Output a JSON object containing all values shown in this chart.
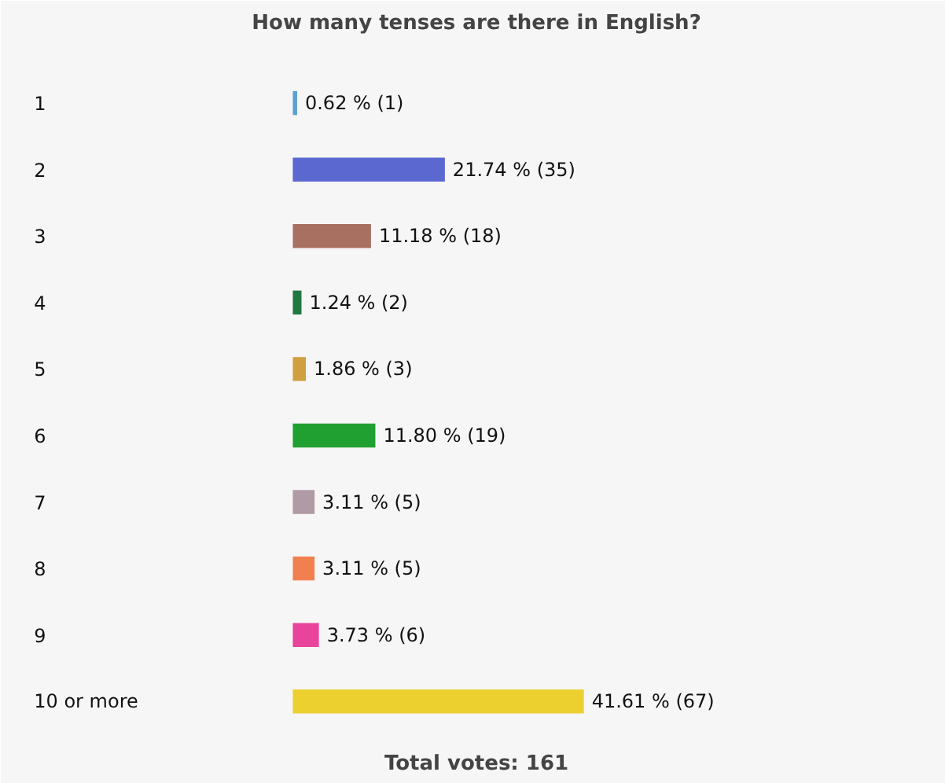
{
  "chart_data": {
    "type": "bar",
    "orientation": "horizontal",
    "title": "How many tenses are there in English?",
    "categories": [
      "1",
      "2",
      "3",
      "4",
      "5",
      "6",
      "7",
      "8",
      "9",
      "10 or more"
    ],
    "values": [
      0.62,
      21.74,
      11.18,
      1.24,
      1.86,
      11.8,
      3.11,
      3.11,
      3.73,
      41.61
    ],
    "colors": [
      "#5aa0d0",
      "#5a68d0",
      "#a87060",
      "#207840",
      "#d0a040",
      "#20a030",
      "#b09aa6",
      "#f08050",
      "#e8449c",
      "#ecd030"
    ],
    "value_labels": [
      "0.62 % (1)",
      "21.74 % (35)",
      "11.18 % (18)",
      "1.24 % (2)",
      "1.86 % (3)",
      "11.80 % (19)",
      "3.11 % (5)",
      "3.11 % (5)",
      "3.73 % (6)",
      "41.61 % (67)"
    ],
    "annotations": [
      "Total votes: 161"
    ]
  }
}
